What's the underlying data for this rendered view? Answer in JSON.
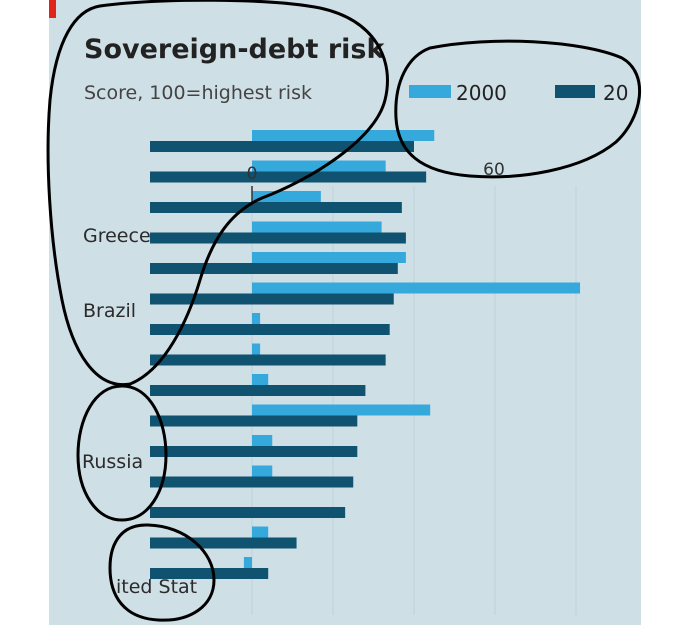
{
  "chart_data": {
    "type": "bar",
    "orientation": "horizontal",
    "title": "Sovereign-debt risk",
    "subtitle": "Score, 100=highest risk",
    "x_ticks": [
      0,
      60
    ],
    "xlim": [
      0,
      80
    ],
    "categories": [
      "",
      "",
      "Greece",
      "",
      "",
      "Brazil",
      "",
      "",
      "",
      "",
      "Russia",
      "",
      "",
      "",
      "United States"
    ],
    "category_labels_visible": [
      "",
      "",
      "Greece",
      "",
      "",
      "Brazil",
      "",
      "",
      "",
      "",
      "Russia",
      "",
      "",
      "",
      "ited Stat"
    ],
    "series": [
      {
        "name": "2000",
        "color": "#35a8dc",
        "values": [
          45,
          33,
          17,
          32,
          38,
          81,
          2,
          2,
          4,
          44,
          5,
          5,
          0,
          4,
          -2
        ]
      },
      {
        "name": "20",
        "color": "#0f5370",
        "values": [
          40,
          43,
          37,
          38,
          36,
          35,
          34,
          33,
          28,
          26,
          26,
          25,
          23,
          11,
          4
        ]
      }
    ],
    "legend": {
      "placement": "top-right"
    },
    "grid": true
  },
  "colors": {
    "panel": "#cfdfe6",
    "accent_red": "#e2231a",
    "annotation_stroke": "#000000"
  }
}
